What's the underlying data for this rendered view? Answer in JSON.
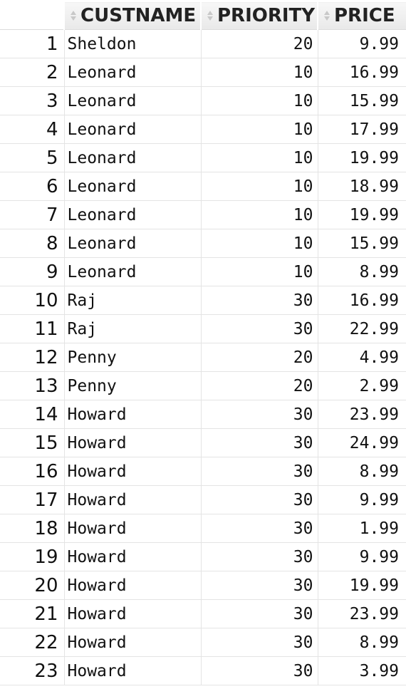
{
  "grid": {
    "columns": [
      {
        "key": "custname",
        "label": "CUSTNAME",
        "sort_icon": "sort-arrows-icon"
      },
      {
        "key": "priority",
        "label": "PRIORITY",
        "sort_icon": "sort-arrows-icon"
      },
      {
        "key": "price",
        "label": "PRICE",
        "sort_icon": "sort-arrows-icon"
      }
    ],
    "rows": [
      {
        "n": "1",
        "custname": "Sheldon",
        "priority": "20",
        "price": "9.99"
      },
      {
        "n": "2",
        "custname": "Leonard",
        "priority": "10",
        "price": "16.99"
      },
      {
        "n": "3",
        "custname": "Leonard",
        "priority": "10",
        "price": "15.99"
      },
      {
        "n": "4",
        "custname": "Leonard",
        "priority": "10",
        "price": "17.99"
      },
      {
        "n": "5",
        "custname": "Leonard",
        "priority": "10",
        "price": "19.99"
      },
      {
        "n": "6",
        "custname": "Leonard",
        "priority": "10",
        "price": "18.99"
      },
      {
        "n": "7",
        "custname": "Leonard",
        "priority": "10",
        "price": "19.99"
      },
      {
        "n": "8",
        "custname": "Leonard",
        "priority": "10",
        "price": "15.99"
      },
      {
        "n": "9",
        "custname": "Leonard",
        "priority": "10",
        "price": "8.99"
      },
      {
        "n": "10",
        "custname": "Raj",
        "priority": "30",
        "price": "16.99"
      },
      {
        "n": "11",
        "custname": "Raj",
        "priority": "30",
        "price": "22.99"
      },
      {
        "n": "12",
        "custname": "Penny",
        "priority": "20",
        "price": "4.99"
      },
      {
        "n": "13",
        "custname": "Penny",
        "priority": "20",
        "price": "2.99"
      },
      {
        "n": "14",
        "custname": "Howard",
        "priority": "30",
        "price": "23.99"
      },
      {
        "n": "15",
        "custname": "Howard",
        "priority": "30",
        "price": "24.99"
      },
      {
        "n": "16",
        "custname": "Howard",
        "priority": "30",
        "price": "8.99"
      },
      {
        "n": "17",
        "custname": "Howard",
        "priority": "30",
        "price": "9.99"
      },
      {
        "n": "18",
        "custname": "Howard",
        "priority": "30",
        "price": "1.99"
      },
      {
        "n": "19",
        "custname": "Howard",
        "priority": "30",
        "price": "9.99"
      },
      {
        "n": "20",
        "custname": "Howard",
        "priority": "30",
        "price": "19.99"
      },
      {
        "n": "21",
        "custname": "Howard",
        "priority": "30",
        "price": "23.99"
      },
      {
        "n": "22",
        "custname": "Howard",
        "priority": "30",
        "price": "8.99"
      },
      {
        "n": "23",
        "custname": "Howard",
        "priority": "30",
        "price": "3.99"
      }
    ]
  }
}
